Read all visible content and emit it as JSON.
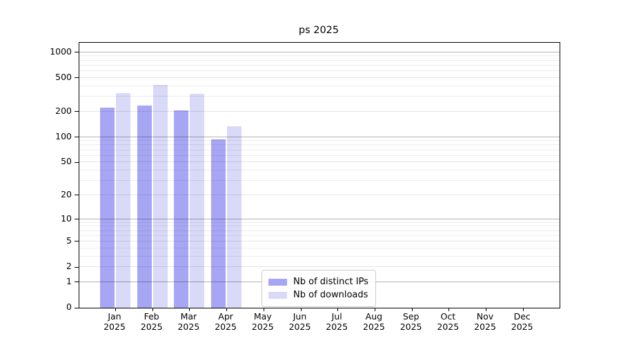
{
  "chart_data": {
    "type": "bar",
    "title": "ps 2025",
    "categories": [
      "Jan",
      "Feb",
      "Mar",
      "Apr",
      "May",
      "Jun",
      "Jul",
      "Aug",
      "Sep",
      "Oct",
      "Nov",
      "Dec"
    ],
    "category_year": "2025",
    "series": [
      {
        "name": "Nb of distinct IPs",
        "color": "#a6a6f4",
        "values": [
          222,
          234,
          208,
          93,
          null,
          null,
          null,
          null,
          null,
          null,
          null,
          null
        ]
      },
      {
        "name": "Nb of downloads",
        "color": "#d9d9f8",
        "values": [
          328,
          412,
          324,
          135,
          null,
          null,
          null,
          null,
          null,
          null,
          null,
          null
        ]
      }
    ],
    "yscale": "log1p",
    "ylim": [
      0,
      1290
    ],
    "y_ticks": [
      0,
      1,
      2,
      5,
      10,
      20,
      50,
      100,
      200,
      500,
      1000
    ],
    "y_minor_ticks": [
      3,
      4,
      6,
      7,
      8,
      9,
      30,
      40,
      60,
      70,
      80,
      90,
      300,
      400,
      600,
      700,
      800,
      900
    ],
    "grid": "horizontal",
    "legend_position": "lower-center",
    "colors": {
      "axis": "#000000",
      "grid_major_pow10": "rgba(0,0,0,0.30)",
      "grid_major": "rgba(0,0,0,0.10)",
      "grid_minor": "rgba(0,0,0,0.07)"
    }
  }
}
